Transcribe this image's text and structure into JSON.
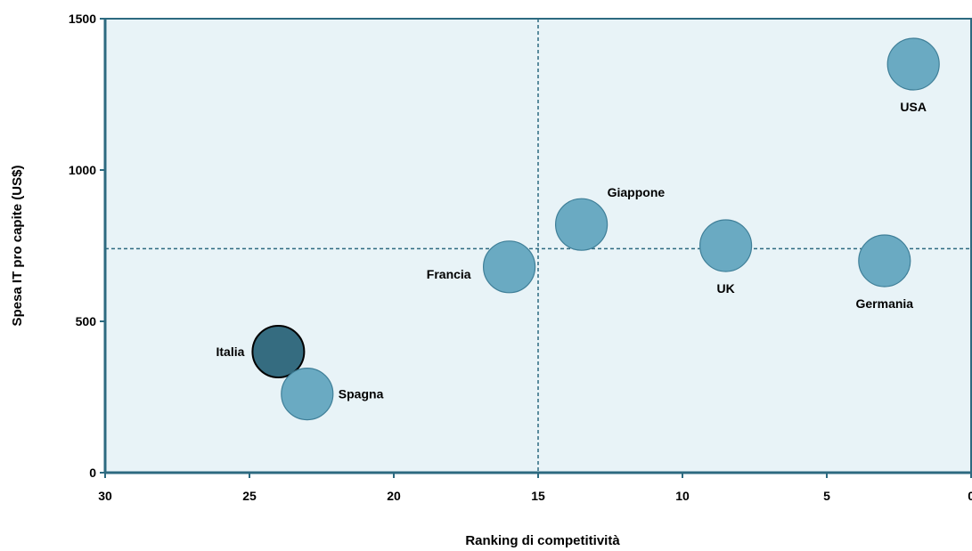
{
  "chart_data": {
    "type": "scatter",
    "title": "",
    "xlabel": "Ranking di competitività",
    "ylabel": "Spesa IT pro capite (US$)",
    "xlim": [
      30,
      0
    ],
    "ylim": [
      0,
      1500
    ],
    "x_reversed": true,
    "x_ticks": [
      30,
      25,
      20,
      15,
      10,
      5,
      0
    ],
    "y_ticks": [
      0,
      500,
      1000,
      1500
    ],
    "grid": false,
    "legend": "none",
    "reference_lines": {
      "x": 15,
      "y": 740
    },
    "colors": {
      "plot_background": "#e8f3f7",
      "frame": "#2d6a80",
      "bubble": "#6aaac2",
      "bubble_stroke": "#3f7f98",
      "highlight": "#356c80",
      "highlight_stroke": "#000000",
      "reference_line": "#2d6a80"
    },
    "points": [
      {
        "label": "USA",
        "x": 2,
        "y": 1350,
        "label_pos": "below",
        "highlight": false
      },
      {
        "label": "Giappone",
        "x": 13.5,
        "y": 820,
        "label_pos": "above-right",
        "highlight": false
      },
      {
        "label": "UK",
        "x": 8.5,
        "y": 750,
        "label_pos": "below",
        "highlight": false
      },
      {
        "label": "Germania",
        "x": 3,
        "y": 700,
        "label_pos": "below",
        "highlight": false
      },
      {
        "label": "Francia",
        "x": 16,
        "y": 680,
        "label_pos": "left",
        "highlight": false
      },
      {
        "label": "Italia",
        "x": 24,
        "y": 400,
        "label_pos": "left",
        "highlight": true
      },
      {
        "label": "Spagna",
        "x": 23,
        "y": 260,
        "label_pos": "right",
        "highlight": false
      }
    ]
  }
}
